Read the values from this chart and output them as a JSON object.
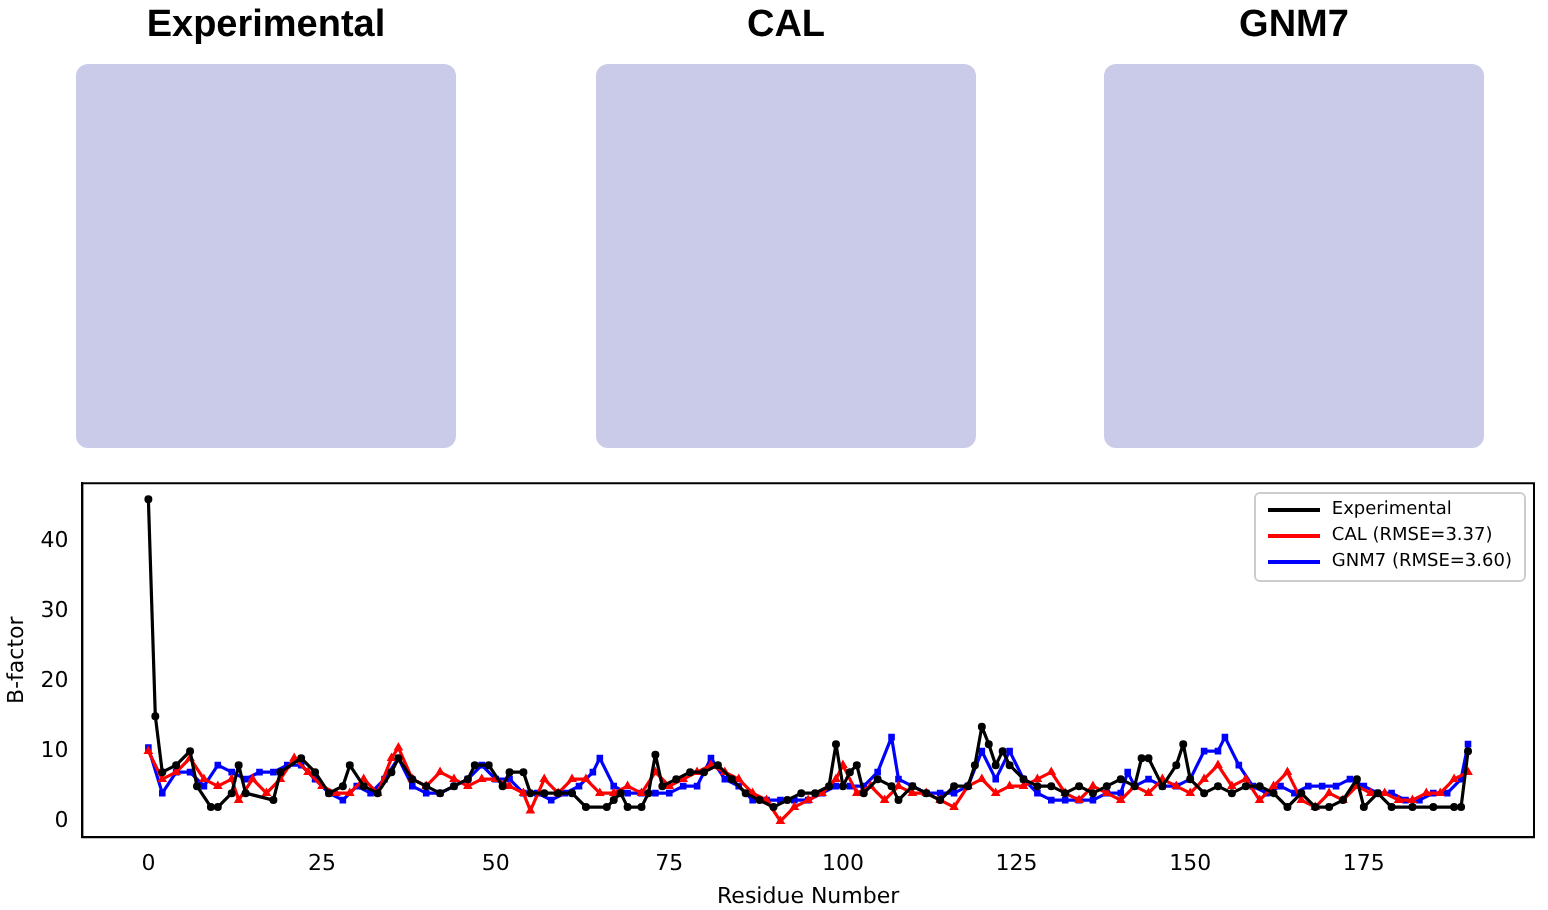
{
  "chart_data": {
    "type": "line",
    "annotations": [
      "Experimental",
      "CAL",
      "GNM7"
    ],
    "xlabel": "Residue Number",
    "ylabel": "B-factor",
    "xlim": [
      -9.5,
      199.5
    ],
    "ylim": [
      -2.3,
      48.3
    ],
    "xticks": [
      0,
      25,
      50,
      75,
      100,
      125,
      150,
      175
    ],
    "yticks": [
      0,
      10,
      20,
      30,
      40
    ],
    "grid": false,
    "legend": "top right",
    "series": [
      {
        "name": "Experimental",
        "color": "#000000",
        "marker": "circle",
        "x": [
          0,
          1,
          2,
          4,
          6,
          7,
          9,
          10,
          12,
          13,
          14,
          18,
          19,
          22,
          24,
          26,
          28,
          29,
          31,
          33,
          35,
          36,
          38,
          40,
          42,
          44,
          46,
          47,
          49,
          51,
          52,
          54,
          55,
          57,
          59,
          61,
          63,
          66,
          67,
          68,
          69,
          71,
          72,
          73,
          74,
          76,
          78,
          80,
          82,
          84,
          86,
          88,
          90,
          92,
          94,
          96,
          98,
          99,
          100,
          101,
          102,
          103,
          105,
          107,
          108,
          110,
          112,
          114,
          116,
          118,
          119,
          120,
          121,
          122,
          123,
          124,
          126,
          128,
          130,
          132,
          134,
          136,
          138,
          140,
          142,
          143,
          144,
          146,
          148,
          149,
          150,
          152,
          154,
          156,
          158,
          160,
          162,
          164,
          166,
          168,
          170,
          172,
          174,
          175,
          177,
          179,
          182,
          185,
          188,
          189,
          190
        ],
        "values": [
          46,
          15,
          7,
          8,
          10,
          5,
          2,
          2,
          4,
          8,
          4,
          3,
          7,
          9,
          7,
          4,
          5,
          8,
          5,
          4,
          7,
          9,
          6,
          5,
          4,
          5,
          6,
          8,
          8,
          5,
          7,
          7,
          4,
          4,
          4,
          4,
          2,
          2,
          3,
          4,
          2,
          2,
          4,
          9.5,
          5,
          6,
          7,
          7,
          8,
          6,
          4,
          3,
          2,
          3,
          4,
          4,
          5,
          11,
          5,
          7,
          8,
          4,
          6,
          5,
          3,
          5,
          4,
          3,
          5,
          5,
          8,
          13.5,
          11,
          8,
          10,
          8,
          6,
          5,
          5,
          4,
          5,
          4,
          5,
          6,
          5,
          9,
          9,
          5,
          8,
          11,
          6,
          4,
          5,
          4,
          5,
          5,
          4,
          2,
          4,
          2,
          2,
          3,
          6,
          2,
          4,
          2,
          2,
          2,
          2,
          2,
          10
        ]
      },
      {
        "name": "CAL (RMSE=3.37)",
        "color": "#ff0000",
        "marker": "triangle",
        "x": [
          0,
          2,
          4,
          6,
          8,
          10,
          12,
          13,
          15,
          17,
          19,
          21,
          23,
          25,
          27,
          29,
          31,
          33,
          35,
          36,
          38,
          40,
          42,
          44,
          46,
          48,
          50,
          52,
          54,
          55,
          57,
          59,
          61,
          63,
          65,
          67,
          69,
          71,
          73,
          75,
          77,
          79,
          81,
          83,
          85,
          87,
          89,
          91,
          93,
          95,
          97,
          99,
          100,
          102,
          104,
          106,
          108,
          110,
          112,
          114,
          116,
          118,
          120,
          122,
          124,
          126,
          128,
          130,
          132,
          134,
          136,
          138,
          140,
          142,
          144,
          146,
          148,
          150,
          152,
          154,
          156,
          158,
          160,
          162,
          164,
          166,
          168,
          170,
          172,
          174,
          176,
          178,
          180,
          182,
          184,
          186,
          188,
          190
        ],
        "values": [
          10,
          6,
          7,
          9,
          6,
          5,
          6,
          3,
          6,
          4,
          6,
          9,
          7,
          5,
          4,
          4,
          6,
          4,
          9,
          10.5,
          6,
          5,
          7,
          6,
          5,
          6,
          6,
          5,
          4,
          1.5,
          6,
          4,
          6,
          6,
          4,
          4,
          5,
          4,
          7,
          5,
          6,
          7,
          8,
          7,
          6,
          4,
          3,
          0,
          2,
          3,
          4,
          6,
          8,
          4,
          5,
          3,
          5,
          4,
          4,
          3,
          2,
          5,
          6,
          4,
          5,
          5,
          6,
          7,
          4,
          3,
          5,
          4,
          3,
          5,
          4,
          6,
          5,
          4,
          6,
          8,
          5,
          6,
          3,
          5,
          7,
          3,
          2,
          4,
          3,
          5,
          4,
          4,
          3,
          3,
          4,
          4,
          6,
          7
        ]
      },
      {
        "name": "GNM7 (RMSE=3.60)",
        "color": "#0000ff",
        "marker": "square",
        "x": [
          0,
          2,
          4,
          6,
          8,
          10,
          12,
          14,
          16,
          18,
          20,
          22,
          24,
          26,
          28,
          30,
          32,
          34,
          36,
          38,
          40,
          42,
          44,
          46,
          48,
          50,
          52,
          54,
          56,
          58,
          60,
          62,
          64,
          65,
          67,
          69,
          71,
          73,
          75,
          77,
          79,
          81,
          83,
          85,
          87,
          89,
          91,
          93,
          95,
          97,
          99,
          101,
          103,
          105,
          107,
          108,
          110,
          112,
          114,
          116,
          118,
          120,
          122,
          124,
          126,
          128,
          130,
          132,
          134,
          136,
          138,
          140,
          141,
          142,
          144,
          146,
          148,
          150,
          152,
          154,
          155,
          157,
          159,
          161,
          163,
          165,
          167,
          169,
          171,
          173,
          175,
          177,
          179,
          181,
          183,
          185,
          187,
          189,
          190
        ],
        "values": [
          10.5,
          4,
          7,
          7,
          5,
          8,
          7,
          6,
          7,
          7,
          8,
          8,
          6,
          4,
          3,
          5,
          4,
          6,
          9,
          5,
          4,
          4,
          5,
          6,
          8,
          6,
          6,
          4,
          4,
          3,
          4,
          5,
          7,
          9,
          5,
          4,
          4,
          4,
          4,
          5,
          5,
          9,
          6,
          5,
          3,
          3,
          3,
          3,
          3,
          4,
          5,
          5,
          5,
          7,
          12,
          6,
          5,
          4,
          4,
          4,
          5,
          10,
          6,
          10,
          6,
          4,
          3,
          3,
          3,
          3,
          4,
          4,
          7,
          5,
          6,
          5,
          5,
          6,
          10,
          10,
          12,
          8,
          5,
          4,
          5,
          4,
          5,
          5,
          5,
          6,
          5,
          4,
          4,
          3,
          3,
          4,
          4,
          6,
          11
        ]
      }
    ]
  }
}
